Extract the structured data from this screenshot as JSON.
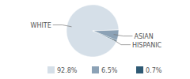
{
  "chart_data": {
    "type": "pie",
    "categories": [
      "WHITE",
      "ASIAN",
      "HISPANIC"
    ],
    "values": [
      92.8,
      6.5,
      0.7
    ],
    "value_labels": [
      "92.8%",
      "6.5%",
      "0.7%"
    ],
    "colors": [
      "#d5dfe8",
      "#8ca2b6",
      "#2f5a74"
    ],
    "legend": "bottom"
  }
}
